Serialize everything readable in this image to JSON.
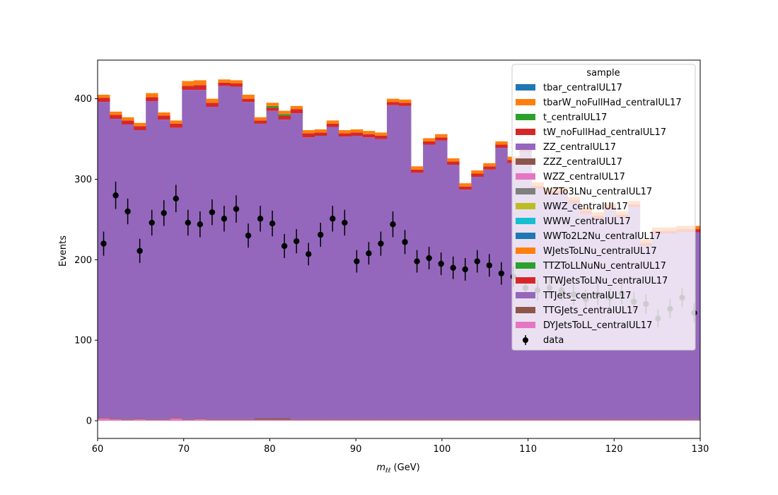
{
  "chart_data": {
    "type": "bar",
    "stacked": true,
    "xlabel_main": "m",
    "xlabel_sub": "ℓℓ",
    "xlabel_unit": " (GeV)",
    "ylabel": "Events",
    "xlim": [
      60,
      130
    ],
    "ylim": [
      -22,
      448
    ],
    "x_ticks": [
      60,
      70,
      80,
      90,
      100,
      110,
      120,
      130
    ],
    "y_ticks": [
      0,
      100,
      200,
      300,
      400
    ],
    "grid": false,
    "legend_title": "sample",
    "legend_position": "top-right",
    "bin_edges": [
      60.0,
      61.4,
      62.8,
      64.2,
      65.6,
      67.0,
      68.4,
      69.8,
      71.2,
      72.6,
      74.0,
      75.4,
      76.8,
      78.2,
      79.6,
      81.0,
      82.4,
      83.8,
      85.2,
      86.6,
      88.0,
      89.4,
      90.8,
      92.2,
      93.6,
      95.0,
      96.4,
      97.8,
      99.2,
      100.6,
      102.0,
      103.4,
      104.8,
      106.2,
      107.6,
      109.0,
      110.4,
      111.8,
      113.2,
      114.6,
      116.0,
      117.4,
      118.8,
      120.2,
      121.6,
      123.0,
      124.4,
      125.8,
      127.2,
      128.6,
      130.0
    ],
    "series": [
      {
        "name": "tbar_centralUL17",
        "color": "#1f77b4",
        "values": [
          0,
          0,
          0,
          0,
          0,
          0,
          0,
          0,
          0,
          0,
          0,
          0,
          0,
          0,
          0,
          0,
          0,
          0,
          0,
          0,
          0,
          0,
          0,
          0,
          0,
          0,
          0,
          0,
          0,
          0,
          0,
          0,
          0,
          0,
          0,
          0,
          0,
          0,
          0,
          0,
          0,
          0,
          0,
          0,
          0,
          0,
          0,
          0,
          0,
          0
        ]
      },
      {
        "name": "tbarW_noFullHad_centralUL17",
        "color": "#ff7f0e",
        "values": [
          0,
          0,
          0,
          0,
          0,
          0,
          0,
          0,
          0,
          0,
          0,
          0,
          0,
          0,
          0,
          0,
          0,
          0,
          0,
          0,
          0,
          0,
          0,
          0,
          0,
          0,
          0,
          0,
          0,
          0,
          0,
          0,
          0,
          0,
          0,
          0,
          0,
          0,
          0,
          0,
          0,
          0,
          0,
          0,
          0,
          0,
          0,
          0,
          0,
          0
        ]
      },
      {
        "name": "t_centralUL17",
        "color": "#2ca02c",
        "values": [
          0,
          0,
          0,
          0,
          0,
          0,
          0,
          0,
          0,
          0,
          0,
          0,
          0,
          0,
          0,
          0,
          0,
          0,
          0,
          0,
          0,
          0,
          0,
          0,
          0,
          0,
          0,
          0,
          0,
          0,
          0,
          0,
          0,
          0,
          0,
          0,
          0,
          0,
          0,
          0,
          0,
          0,
          0,
          0,
          0,
          0,
          0,
          0,
          0,
          0
        ]
      },
      {
        "name": "tW_noFullHad_centralUL17",
        "color": "#d62728",
        "values": [
          0,
          0,
          0,
          0,
          0,
          0,
          0,
          0,
          0,
          0,
          0,
          0,
          0,
          0,
          0,
          0,
          0,
          0,
          0,
          0,
          0,
          0,
          0,
          0,
          0,
          0,
          0,
          0,
          0,
          0,
          0,
          0,
          0,
          0,
          0,
          0,
          0,
          0,
          0,
          0,
          0,
          0,
          0,
          0,
          0,
          0,
          0,
          0,
          0,
          0
        ]
      },
      {
        "name": "ZZ_centralUL17",
        "color": "#9467bd",
        "values": [
          0,
          0,
          0,
          0,
          0,
          0,
          0,
          0,
          0,
          0,
          0,
          0,
          0,
          0,
          0,
          0,
          0,
          0,
          0,
          0,
          0,
          0,
          0,
          0,
          0,
          0,
          0,
          0,
          0,
          0,
          0,
          0,
          0,
          0,
          0,
          0,
          0,
          0,
          0,
          0,
          0,
          0,
          0,
          0,
          0,
          0,
          0,
          0,
          0,
          0
        ]
      },
      {
        "name": "ZZZ_centralUL17",
        "color": "#8c564b",
        "values": [
          0,
          0,
          0,
          0,
          0,
          0,
          0,
          0,
          0,
          0,
          0,
          0,
          0,
          0,
          0,
          0,
          0,
          0,
          0,
          0,
          0,
          0,
          0,
          0,
          0,
          0,
          0,
          0,
          0,
          0,
          0,
          0,
          0,
          0,
          0,
          0,
          0,
          0,
          0,
          0,
          0,
          0,
          0,
          0,
          0,
          0,
          0,
          0,
          0,
          0
        ]
      },
      {
        "name": "WZZ_centralUL17",
        "color": "#e377c2",
        "values": [
          0,
          0,
          0,
          0,
          0,
          0,
          0,
          0,
          0,
          0,
          0,
          0,
          0,
          0,
          0,
          0,
          0,
          0,
          0,
          0,
          0,
          0,
          0,
          0,
          0,
          0,
          0,
          0,
          0,
          0,
          0,
          0,
          0,
          0,
          0,
          0,
          0,
          0,
          0,
          0,
          0,
          0,
          0,
          0,
          0,
          0,
          0,
          0,
          0,
          0
        ]
      },
      {
        "name": "WZTo3LNu_centralUL17",
        "color": "#7f7f7f",
        "values": [
          0,
          0,
          0,
          0,
          0,
          0,
          0,
          0,
          0,
          0,
          0,
          0,
          0,
          0,
          0,
          0,
          0,
          0,
          0,
          0,
          0,
          0,
          0,
          0,
          0,
          0,
          0,
          0,
          0,
          0,
          0,
          0,
          0,
          0,
          0,
          0,
          0,
          0,
          0,
          0,
          0,
          0,
          0,
          0,
          0,
          0,
          0,
          0,
          0,
          0
        ]
      },
      {
        "name": "WWZ_centralUL17",
        "color": "#bcbd22",
        "values": [
          0,
          0,
          0,
          0,
          0,
          0,
          0,
          0,
          0,
          0,
          0,
          0,
          0,
          0,
          0,
          0,
          0,
          0,
          0,
          0,
          0,
          0,
          0,
          0,
          0,
          0,
          0,
          0,
          0,
          0,
          0,
          0,
          0,
          0,
          0,
          0,
          0,
          0,
          0,
          0,
          0,
          0,
          0,
          0,
          0,
          0,
          0,
          0,
          0,
          0
        ]
      },
      {
        "name": "WWW_centralUL17",
        "color": "#17becf",
        "values": [
          0,
          0,
          0,
          0,
          0,
          0,
          0,
          0,
          0,
          0,
          0,
          0,
          0,
          0,
          0,
          0,
          0,
          0,
          0,
          0,
          0,
          0,
          0,
          0,
          0,
          0,
          0,
          0,
          0,
          0,
          0,
          0,
          0,
          0,
          0,
          0,
          0,
          0,
          0,
          0,
          0,
          0,
          0,
          0,
          0,
          0,
          0,
          0,
          0,
          0
        ]
      },
      {
        "name": "WWTo2L2Nu_centralUL17",
        "color": "#1f77b4",
        "values": [
          0,
          0,
          0,
          0,
          0,
          0,
          0,
          0,
          0,
          0,
          0,
          0,
          0,
          0,
          0,
          0,
          0,
          0,
          0,
          0,
          0,
          0,
          0,
          0,
          0,
          0,
          0,
          0,
          0,
          0,
          0,
          0,
          0,
          0,
          0,
          0,
          0,
          0,
          0,
          0,
          0,
          0,
          0,
          0,
          0,
          0,
          0,
          0,
          0,
          0
        ]
      },
      {
        "name": "WJetsToLNu_centralUL17",
        "color": "#ff7f0e",
        "values": [
          4,
          4,
          4,
          4,
          5,
          4,
          4,
          6,
          6,
          5,
          4,
          4,
          5,
          4,
          4,
          4,
          4,
          4,
          4,
          4,
          4,
          4,
          4,
          4,
          4,
          4,
          4,
          4,
          4,
          4,
          4,
          4,
          4,
          4,
          4,
          4,
          4,
          4,
          4,
          4,
          4,
          4,
          4,
          4,
          4,
          4,
          4,
          4,
          4,
          4
        ]
      },
      {
        "name": "TTZToLLNuNu_centralUL17",
        "color": "#2ca02c",
        "values": [
          0,
          0,
          0,
          0,
          0,
          0,
          0,
          0,
          0,
          0,
          0,
          0,
          0,
          0,
          2,
          2,
          0,
          0,
          0,
          0,
          0,
          0,
          0,
          0,
          0,
          0,
          0,
          0,
          0,
          0,
          0,
          0,
          0,
          0,
          0,
          0,
          0,
          0,
          0,
          0,
          0,
          0,
          0,
          0,
          0,
          0,
          0,
          0,
          0,
          0
        ]
      },
      {
        "name": "TTWJetsToLNu_centralUL17",
        "color": "#d62728",
        "values": [
          5,
          5,
          5,
          5,
          5,
          5,
          5,
          5,
          6,
          5,
          4,
          4,
          4,
          4,
          4,
          5,
          5,
          5,
          4,
          4,
          4,
          4,
          4,
          4,
          4,
          4,
          4,
          4,
          4,
          4,
          4,
          4,
          4,
          4,
          4,
          4,
          4,
          4,
          4,
          4,
          4,
          4,
          4,
          4,
          4,
          4,
          4,
          4,
          4,
          4
        ]
      },
      {
        "name": "TTJets_centralUL17",
        "color": "#9467bd",
        "values": [
          392,
          372,
          366,
          358,
          395,
          372,
          360,
          409,
          408,
          388,
          414,
          413,
          394,
          366,
          382,
          371,
          380,
          350,
          352,
          363,
          351,
          352,
          350,
          348,
          390,
          389,
          306,
          341,
          346,
          316,
          285,
          301,
          310,
          337,
          318,
          332,
          286,
          279,
          280,
          268,
          255,
          249,
          260,
          250,
          263,
          215,
          230,
          230,
          232,
          232
        ]
      },
      {
        "name": "TTGJets_centralUL17",
        "color": "#8c564b",
        "values": [
          1,
          1,
          1,
          1,
          1,
          1,
          1,
          1,
          1,
          1,
          1,
          1,
          1,
          2,
          2,
          2,
          1,
          1,
          1,
          1,
          1,
          1,
          1,
          1,
          1,
          1,
          1,
          1,
          1,
          1,
          1,
          1,
          1,
          1,
          1,
          1,
          1,
          1,
          1,
          1,
          1,
          1,
          1,
          1,
          1,
          1,
          1,
          1,
          1,
          1
        ]
      },
      {
        "name": "DYJetsToLL_centralUL17",
        "color": "#e377c2",
        "values": [
          3,
          2,
          1,
          2,
          1,
          1,
          3,
          1,
          2,
          1,
          1,
          1,
          1,
          1,
          1,
          1,
          1,
          1,
          1,
          1,
          1,
          1,
          1,
          1,
          1,
          1,
          1,
          1,
          1,
          1,
          1,
          1,
          1,
          1,
          1,
          1,
          1,
          1,
          1,
          1,
          1,
          1,
          1,
          1,
          1,
          1,
          1,
          1,
          1,
          1
        ]
      }
    ],
    "data": {
      "name": "data",
      "color": "#000000",
      "x": [
        60.7,
        62.1,
        63.5,
        64.9,
        66.3,
        67.7,
        69.1,
        70.5,
        71.9,
        73.3,
        74.7,
        76.1,
        77.5,
        78.9,
        80.3,
        81.7,
        83.1,
        84.5,
        85.9,
        87.3,
        88.7,
        90.1,
        91.5,
        92.9,
        94.3,
        95.7,
        97.1,
        98.5,
        99.9,
        101.3,
        102.7,
        104.1,
        105.5,
        106.9,
        108.3,
        109.7,
        111.1,
        112.5,
        113.9,
        115.3,
        116.7,
        118.1,
        119.5,
        120.9,
        122.3,
        123.7,
        125.1,
        126.5,
        127.9,
        129.3
      ],
      "y": [
        220,
        280,
        260,
        211,
        246,
        258,
        276,
        246,
        244,
        259,
        251,
        263,
        230,
        251,
        245,
        217,
        223,
        207,
        231,
        251,
        246,
        198,
        208,
        220,
        244,
        222,
        198,
        202,
        195,
        190,
        188,
        198,
        193,
        183,
        179,
        165,
        162,
        165,
        162,
        157,
        151,
        157,
        153,
        158,
        148,
        145,
        127,
        139,
        153,
        134
      ],
      "err": [
        15,
        17,
        16,
        15,
        16,
        16,
        17,
        16,
        16,
        16,
        16,
        17,
        15,
        16,
        16,
        15,
        15,
        14,
        15,
        16,
        16,
        14,
        14,
        15,
        16,
        15,
        14,
        14,
        14,
        14,
        14,
        14,
        14,
        14,
        13,
        13,
        13,
        13,
        13,
        13,
        12,
        13,
        12,
        13,
        12,
        12,
        11,
        12,
        12,
        12
      ]
    }
  }
}
